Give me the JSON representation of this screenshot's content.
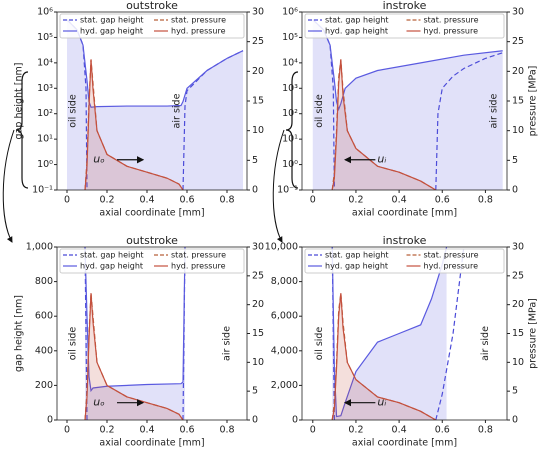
{
  "chart_data": [
    {
      "type": "line",
      "title": "outstroke",
      "xlabel": "axial coordinate [mm]",
      "ylabel": "gap height [nm]",
      "ylog": true,
      "ylim": [
        0.1,
        1000000
      ],
      "yticks": [
        {
          "value": 0.1,
          "label": "10⁻¹"
        },
        {
          "value": 1,
          "label": "10⁰"
        },
        {
          "value": 10,
          "label": "10¹"
        },
        {
          "value": 100,
          "label": "10²"
        },
        {
          "value": 1000,
          "label": "10³"
        },
        {
          "value": 10000,
          "label": "10⁴"
        },
        {
          "value": 100000,
          "label": "10⁵"
        },
        {
          "value": 1000000,
          "label": "10⁶"
        }
      ],
      "xlim": [
        -0.05,
        0.9
      ],
      "xticks": [
        0.0,
        0.2,
        0.4,
        0.6,
        0.8
      ],
      "y2lim": [
        0,
        30
      ],
      "y2ticks": [
        0,
        5,
        10,
        15,
        20,
        25,
        30
      ],
      "annotations": [
        "oil side",
        "air side",
        "uₒ"
      ],
      "series": [
        {
          "name": "stat. gap height",
          "color": "#4a4ad8",
          "style": "dashed",
          "x": [
            0.0,
            0.05,
            0.08,
            0.095,
            0.1,
            0.3,
            0.58,
            0.59,
            0.6,
            0.7,
            0.8,
            0.88
          ],
          "values": [
            500000,
            200000,
            50000,
            1000,
            0.1,
            null,
            0.1,
            200,
            800,
            5000,
            15000,
            30000
          ]
        },
        {
          "name": "hyd. gap height",
          "color": "#5a5ae0",
          "style": "solid",
          "x": [
            0.0,
            0.05,
            0.08,
            0.1,
            0.11,
            0.12,
            0.15,
            0.3,
            0.5,
            0.57,
            0.58,
            0.6,
            0.7,
            0.8,
            0.88
          ],
          "values": [
            500000,
            200000,
            50000,
            2000,
            300,
            180,
            190,
            200,
            200,
            210,
            300,
            1000,
            5000,
            15000,
            30000
          ]
        },
        {
          "name": "stat. pressure",
          "color": "#b8623a",
          "style": "dashed",
          "axis": "y2",
          "x": [
            0.09,
            0.1,
            0.11,
            0.12,
            0.13,
            0.15,
            0.2,
            0.3,
            0.4,
            0.5,
            0.56,
            0.58
          ],
          "values": [
            0,
            5,
            15,
            22,
            18,
            10,
            6,
            4,
            3,
            2,
            1,
            0
          ]
        },
        {
          "name": "hyd. pressure",
          "color": "#c4503e",
          "style": "solid",
          "axis": "y2",
          "x": [
            0.09,
            0.1,
            0.11,
            0.12,
            0.13,
            0.15,
            0.2,
            0.3,
            0.4,
            0.5,
            0.56,
            0.58
          ],
          "values": [
            0,
            4,
            14,
            22,
            17,
            10,
            6,
            4,
            3,
            2,
            1,
            0
          ]
        }
      ]
    },
    {
      "type": "line",
      "title": "instroke",
      "xlabel": "axial coordinate [mm]",
      "y2label": "pressure [MPa]",
      "ylog": true,
      "ylim": [
        0.1,
        1000000
      ],
      "yticks": [
        {
          "value": 0.1,
          "label": "10⁻¹"
        },
        {
          "value": 1,
          "label": "10⁰"
        },
        {
          "value": 10,
          "label": "10¹"
        },
        {
          "value": 100,
          "label": "10²"
        },
        {
          "value": 1000,
          "label": "10³"
        },
        {
          "value": 10000,
          "label": "10⁴"
        },
        {
          "value": 100000,
          "label": "10⁵"
        },
        {
          "value": 1000000,
          "label": "10⁶"
        }
      ],
      "xlim": [
        -0.05,
        0.9
      ],
      "xticks": [
        0.0,
        0.2,
        0.4,
        0.6,
        0.8
      ],
      "y2lim": [
        0,
        30
      ],
      "y2ticks": [
        0,
        5,
        10,
        15,
        20,
        25,
        30
      ],
      "annotations": [
        "oil side",
        "air side",
        "uᵢ"
      ],
      "series": [
        {
          "name": "stat. gap height",
          "color": "#4a4ad8",
          "style": "dashed",
          "x": [
            0.0,
            0.05,
            0.08,
            0.095,
            0.1,
            0.3,
            0.57,
            0.58,
            0.6,
            0.65,
            0.7,
            0.8,
            0.88
          ],
          "values": [
            500000,
            200000,
            50000,
            1000,
            0.1,
            null,
            0.1,
            100,
            1000,
            3000,
            6000,
            15000,
            25000
          ]
        },
        {
          "name": "hyd. gap height",
          "color": "#5a5ae0",
          "style": "solid",
          "x": [
            0.0,
            0.05,
            0.08,
            0.1,
            0.11,
            0.12,
            0.13,
            0.15,
            0.2,
            0.3,
            0.5,
            0.7,
            0.88
          ],
          "values": [
            500000,
            200000,
            50000,
            2000,
            300,
            150,
            250,
            1000,
            2500,
            5000,
            10000,
            20000,
            30000
          ]
        },
        {
          "name": "stat. pressure",
          "color": "#b8623a",
          "style": "dashed",
          "axis": "y2",
          "x": [
            0.09,
            0.1,
            0.11,
            0.12,
            0.13,
            0.14,
            0.16,
            0.2,
            0.3,
            0.4,
            0.5,
            0.57
          ],
          "values": [
            0,
            3,
            10,
            19,
            22,
            17,
            10,
            7,
            4,
            3,
            1.5,
            0
          ]
        },
        {
          "name": "hyd. pressure",
          "color": "#c4503e",
          "style": "solid",
          "axis": "y2",
          "x": [
            0.09,
            0.1,
            0.11,
            0.12,
            0.13,
            0.14,
            0.16,
            0.2,
            0.3,
            0.4,
            0.5,
            0.57
          ],
          "values": [
            0,
            2,
            9,
            18,
            22,
            16,
            10,
            7,
            4,
            3,
            1.5,
            0
          ]
        }
      ]
    },
    {
      "type": "line",
      "title": "outstroke",
      "xlabel": "axial coordinate [mm]",
      "ylabel": "gap height [nm]",
      "ylog": false,
      "ylim": [
        0,
        1000
      ],
      "yticks": [
        0,
        200,
        400,
        600,
        800,
        {
          "value": 1000,
          "label": "1,000"
        }
      ],
      "xlim": [
        -0.05,
        0.9
      ],
      "xticks": [
        0.0,
        0.2,
        0.4,
        0.6,
        0.8
      ],
      "y2lim": [
        0,
        30
      ],
      "y2ticks": [
        0,
        5,
        10,
        15,
        20,
        25,
        30
      ],
      "annotations": [
        "oil side",
        "air side",
        "uₒ"
      ],
      "series": [
        {
          "name": "stat. gap height",
          "color": "#4a4ad8",
          "style": "dashed",
          "x": [
            0.09,
            0.1,
            0.3,
            0.58,
            0.59
          ],
          "values": [
            1000,
            0,
            null,
            0,
            1000
          ]
        },
        {
          "name": "hyd. gap height",
          "color": "#5a5ae0",
          "style": "solid",
          "x": [
            0.09,
            0.1,
            0.11,
            0.12,
            0.13,
            0.2,
            0.4,
            0.57,
            0.58,
            0.59
          ],
          "values": [
            1000,
            600,
            250,
            170,
            185,
            195,
            205,
            210,
            220,
            1000
          ]
        },
        {
          "name": "stat. pressure",
          "color": "#b8623a",
          "style": "dashed",
          "axis": "y2",
          "x": [
            0.09,
            0.1,
            0.11,
            0.12,
            0.13,
            0.15,
            0.2,
            0.3,
            0.4,
            0.5,
            0.56,
            0.58
          ],
          "values": [
            0,
            5,
            15,
            22,
            18,
            10,
            6,
            4,
            3,
            2,
            1,
            0
          ]
        },
        {
          "name": "hyd. pressure",
          "color": "#c4503e",
          "style": "solid",
          "axis": "y2",
          "x": [
            0.09,
            0.1,
            0.11,
            0.12,
            0.13,
            0.15,
            0.2,
            0.3,
            0.4,
            0.5,
            0.56,
            0.58
          ],
          "values": [
            0,
            4,
            14,
            22,
            17,
            10,
            6,
            4,
            3,
            2,
            1,
            0
          ]
        }
      ]
    },
    {
      "type": "line",
      "title": "instroke",
      "xlabel": "axial coordinate [mm]",
      "y2label": "pressure [MPa]",
      "ylog": false,
      "ylim": [
        0,
        10000
      ],
      "yticks": [
        0,
        {
          "value": 2000,
          "label": "2,000"
        },
        {
          "value": 4000,
          "label": "4,000"
        },
        {
          "value": 6000,
          "label": "6,000"
        },
        {
          "value": 8000,
          "label": "8,000"
        },
        {
          "value": 10000,
          "label": "10,000"
        }
      ],
      "xlim": [
        -0.05,
        0.9
      ],
      "xticks": [
        0.0,
        0.2,
        0.4,
        0.6,
        0.8
      ],
      "y2lim": [
        0,
        30
      ],
      "y2ticks": [
        0,
        5,
        10,
        15,
        20,
        25,
        30
      ],
      "annotations": [
        "oil side",
        "air side",
        "uᵢ"
      ],
      "series": [
        {
          "name": "stat. gap height",
          "color": "#4a4ad8",
          "style": "dashed",
          "x": [
            0.09,
            0.1,
            0.3,
            0.57,
            0.6,
            0.65,
            0.7
          ],
          "values": [
            10000,
            0,
            null,
            0,
            1500,
            5000,
            10000
          ]
        },
        {
          "name": "hyd. gap height",
          "color": "#5a5ae0",
          "style": "solid",
          "x": [
            0.09,
            0.1,
            0.11,
            0.13,
            0.15,
            0.2,
            0.3,
            0.4,
            0.5,
            0.55,
            0.6,
            0.62
          ],
          "values": [
            10000,
            3000,
            200,
            250,
            1000,
            2800,
            4500,
            5000,
            5500,
            7000,
            9000,
            10000
          ]
        },
        {
          "name": "stat. pressure",
          "color": "#b8623a",
          "style": "dashed",
          "axis": "y2",
          "x": [
            0.09,
            0.1,
            0.11,
            0.12,
            0.13,
            0.14,
            0.16,
            0.2,
            0.3,
            0.4,
            0.5,
            0.57
          ],
          "values": [
            0,
            3,
            10,
            19,
            22,
            17,
            10,
            7,
            4,
            3,
            1.5,
            0
          ]
        },
        {
          "name": "hyd. pressure",
          "color": "#c4503e",
          "style": "solid",
          "axis": "y2",
          "x": [
            0.09,
            0.1,
            0.11,
            0.12,
            0.13,
            0.14,
            0.16,
            0.2,
            0.3,
            0.4,
            0.5,
            0.57
          ],
          "values": [
            0,
            2,
            9,
            18,
            22,
            16,
            10,
            7,
            4,
            3,
            1.5,
            0
          ]
        }
      ]
    }
  ]
}
